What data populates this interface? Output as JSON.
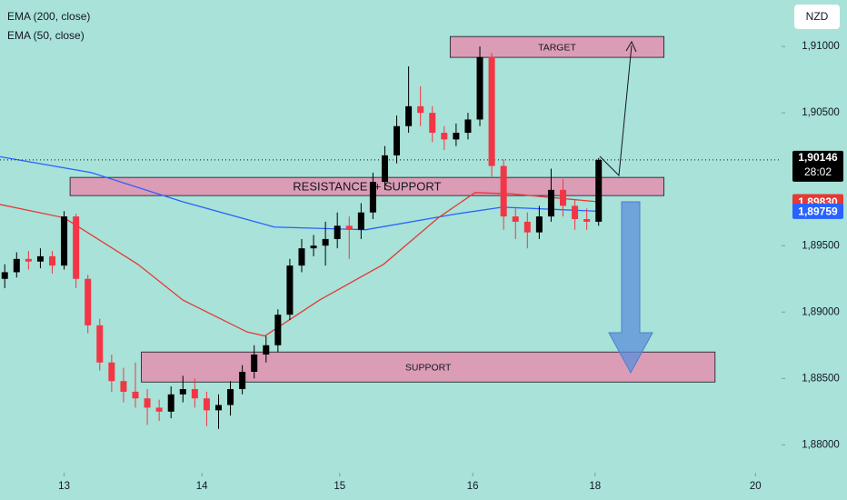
{
  "chart_data": {
    "type": "candlestick",
    "currency": "NZD",
    "legend": [
      "EMA (200, close)",
      "EMA (50, close)"
    ],
    "up_color": "#000000",
    "down_color": "#f23645",
    "xlim": [
      -0.4,
      65.4
    ],
    "ylim": [
      1.8779,
      1.9135
    ],
    "xticks": [
      {
        "value": 5,
        "label": "13"
      },
      {
        "value": 16.6,
        "label": "14"
      },
      {
        "value": 28.2,
        "label": "15"
      },
      {
        "value": 39.4,
        "label": "16"
      },
      {
        "value": 49.7,
        "label": "18"
      },
      {
        "value": 63.2,
        "label": "20"
      }
    ],
    "yticks": [
      {
        "value": 1.88,
        "label": "1,88000"
      },
      {
        "value": 1.885,
        "label": "1,88500"
      },
      {
        "value": 1.89,
        "label": "1,89000"
      },
      {
        "value": 1.895,
        "label": "1,89500"
      },
      {
        "value": 1.905,
        "label": "1,90500"
      },
      {
        "value": 1.91,
        "label": "1,91000"
      }
    ],
    "open": [
      1.8925,
      1.893,
      1.894,
      1.8938,
      1.8942,
      1.8935,
      1.8972,
      1.8925,
      1.889,
      1.8862,
      1.8848,
      1.884,
      1.8835,
      1.8828,
      1.8825,
      1.8838,
      1.8842,
      1.8835,
      1.8826,
      1.883,
      1.8842,
      1.8855,
      1.8868,
      1.8875,
      1.8898,
      1.8935,
      1.8948,
      1.895,
      1.8955,
      1.8965,
      1.8962,
      1.8975,
      1.8998,
      1.9018,
      1.904,
      1.9055,
      1.905,
      1.9035,
      1.903,
      1.9035,
      1.9045,
      1.9092,
      1.901,
      1.8972,
      1.8968,
      1.896,
      1.8972,
      1.8992,
      1.898,
      1.897,
      1.8968
    ],
    "high": [
      1.8936,
      1.8945,
      1.8946,
      1.8948,
      1.8946,
      1.8976,
      1.8974,
      1.8928,
      1.8895,
      1.8868,
      1.8858,
      1.8862,
      1.8842,
      1.8834,
      1.8844,
      1.8852,
      1.885,
      1.884,
      1.8838,
      1.8848,
      1.886,
      1.8875,
      1.8882,
      1.8902,
      1.894,
      1.8955,
      1.8958,
      1.8968,
      1.8975,
      1.8972,
      1.8982,
      1.9005,
      1.9025,
      1.9048,
      1.9085,
      1.907,
      1.9055,
      1.904,
      1.9042,
      1.905,
      1.91,
      1.9095,
      1.9015,
      1.8978,
      1.8975,
      1.898,
      1.9008,
      1.9,
      1.8985,
      1.8978,
      1.9016
    ],
    "low": [
      1.8918,
      1.8926,
      1.8932,
      1.8933,
      1.8929,
      1.8932,
      1.8918,
      1.8884,
      1.8856,
      1.884,
      1.8832,
      1.8828,
      1.8815,
      1.8818,
      1.882,
      1.8832,
      1.8828,
      1.8814,
      1.8812,
      1.8822,
      1.8838,
      1.885,
      1.8862,
      1.887,
      1.8894,
      1.893,
      1.8942,
      1.8935,
      1.8948,
      1.894,
      1.8955,
      1.897,
      1.8992,
      1.9012,
      1.9035,
      1.904,
      1.9028,
      1.9022,
      1.9025,
      1.903,
      1.904,
      1.9002,
      1.8962,
      1.8955,
      1.8948,
      1.8955,
      1.8968,
      1.8972,
      1.8962,
      1.8962,
      1.8965
    ],
    "close": [
      1.893,
      1.894,
      1.8938,
      1.8942,
      1.8935,
      1.8972,
      1.8925,
      1.889,
      1.8862,
      1.8848,
      1.884,
      1.8835,
      1.8828,
      1.8825,
      1.8838,
      1.8842,
      1.8835,
      1.8826,
      1.883,
      1.8842,
      1.8855,
      1.8868,
      1.8875,
      1.8898,
      1.8935,
      1.8948,
      1.895,
      1.8955,
      1.8965,
      1.8962,
      1.8975,
      1.8998,
      1.9018,
      1.904,
      1.9055,
      1.905,
      1.9035,
      1.903,
      1.9035,
      1.9045,
      1.9092,
      1.901,
      1.8972,
      1.8968,
      1.896,
      1.8972,
      1.8992,
      1.898,
      1.897,
      1.8968,
      1.90146
    ],
    "series": [
      {
        "name": "EMA (200, close)",
        "color": "#2962ff",
        "x": [
          -0.4,
          7.3,
          15,
          22.7,
          30.4,
          38.1,
          41.9,
          50
        ],
        "values": [
          1.9017,
          1.9005,
          1.8983,
          1.8964,
          1.8962,
          1.8974,
          1.8979,
          1.89759
        ]
      },
      {
        "name": "EMA (50, close)",
        "color": "#e53935",
        "x": [
          -0.4,
          5,
          11.2,
          15,
          20.4,
          21.9,
          26.5,
          31.9,
          36.5,
          39.6,
          42.7,
          50
        ],
        "values": [
          1.8981,
          1.8971,
          1.8936,
          1.8909,
          1.8885,
          1.8882,
          1.8909,
          1.8936,
          1.8971,
          1.899,
          1.8989,
          1.8983
        ]
      }
    ],
    "zones": [
      {
        "label": "TARGET",
        "x": [
          37.5,
          55.5
        ],
        "y": [
          1.91075,
          1.90918
        ]
      },
      {
        "label": "RESISTANCE  + SUPPORT",
        "x": [
          5.5,
          55.5
        ],
        "y": [
          1.90014,
          1.89877
        ]
      },
      {
        "label": "SUPPORT",
        "x": [
          11.5,
          59.8
        ],
        "y": [
          1.88699,
          1.88473
        ]
      }
    ],
    "last_price": {
      "value": 1.90146,
      "label": "1,90146"
    },
    "countdown": "28:02",
    "ema_labels": [
      {
        "value": 1.8983,
        "label": "1,89830"
      },
      {
        "value": 1.89759,
        "label": "1,89759"
      }
    ]
  }
}
